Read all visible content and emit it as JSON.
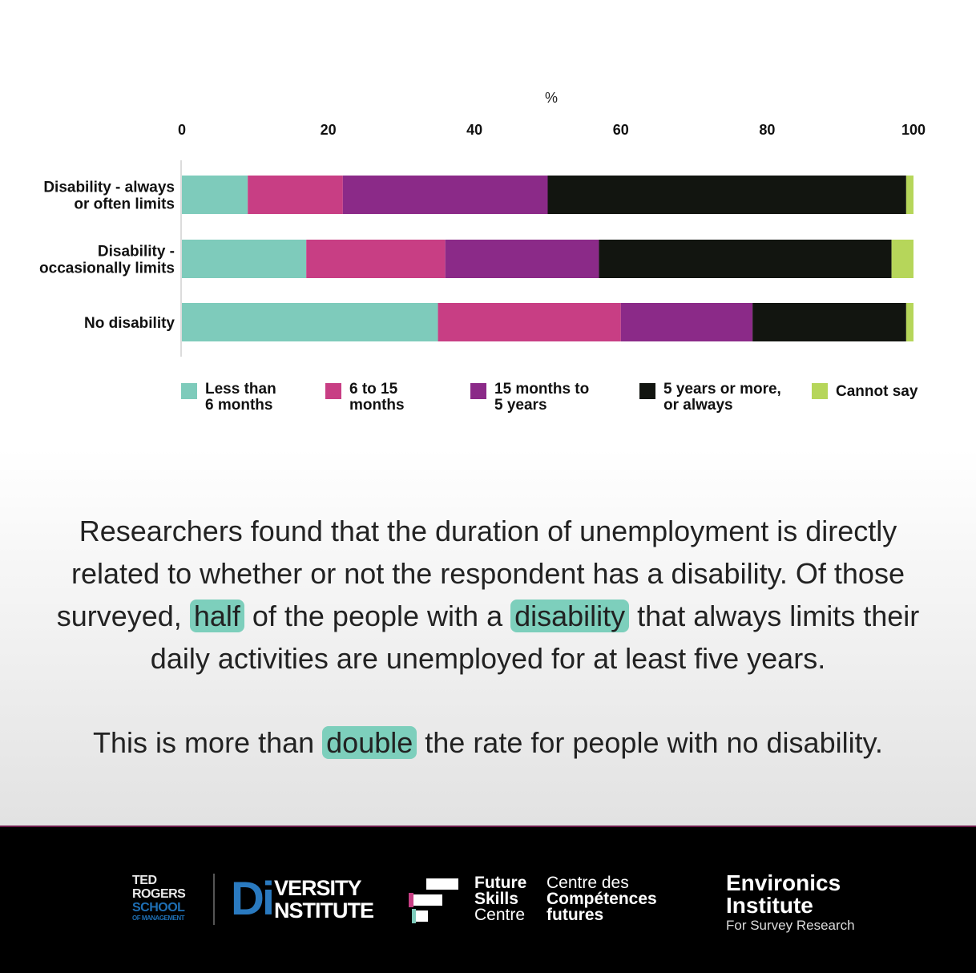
{
  "chart_data": {
    "type": "bar",
    "orientation": "horizontal",
    "stacked": true,
    "unit_label": "%",
    "xlim": [
      0,
      100
    ],
    "x_ticks": [
      "0",
      "20",
      "40",
      "60",
      "80",
      "100"
    ],
    "categories": [
      "Disability - always or often limits",
      "Disability - occasionally limits",
      "No disability"
    ],
    "category_lines": [
      [
        "Disability - always",
        "or often limits"
      ],
      [
        "Disability -",
        "occasionally limits"
      ],
      [
        "No disability"
      ]
    ],
    "series": [
      {
        "name": "Less than 6 months",
        "name_lines": [
          "Less than",
          "6 months"
        ],
        "color": "#7ecbbb",
        "values": [
          9,
          17,
          35
        ]
      },
      {
        "name": "6 to 15 months",
        "name_lines": [
          "6 to 15",
          "months"
        ],
        "color": "#c83e84",
        "values": [
          13,
          19,
          25
        ]
      },
      {
        "name": "15 months to 5 years",
        "name_lines": [
          "15 months to",
          "5 years"
        ],
        "color": "#8b2a88",
        "values": [
          28,
          21,
          18
        ]
      },
      {
        "name": "5 years or more, or always",
        "name_lines": [
          "5 years or more,",
          "or always"
        ],
        "color": "#121510",
        "values": [
          49,
          40,
          21
        ]
      },
      {
        "name": "Cannot say",
        "name_lines": [
          "Cannot say"
        ],
        "color": "#b6d65a",
        "values": [
          1,
          3,
          1
        ]
      }
    ],
    "grid": false,
    "legend_position": "bottom"
  },
  "caption": {
    "p1_a": "Researchers found that the duration of unemployment is directly related to whether or not the respondent has a disability. Of those surveyed, ",
    "p1_h1": "half",
    "p1_b": " of the people with a ",
    "p1_h2": "disability",
    "p1_c": " that always limits their daily activities are unemployed for at least five years.",
    "p2_a": "This is more than ",
    "p2_h1": "double",
    "p2_b": " the rate for people with no disability."
  },
  "footer": {
    "tr_line1": "TED",
    "tr_line2": "ROGERS",
    "tr_line3": "SCHOOL",
    "tr_line4": "OF MANAGEMENT",
    "di_mark": "Di",
    "di_line1": "VERSITY",
    "di_line2": "NSTITUTE",
    "fsc_en_1": "Future",
    "fsc_en_2": "Skills",
    "fsc_en_3": "Centre",
    "fsc_fr_1": "Centre des",
    "fsc_fr_2": "Compétences",
    "fsc_fr_3": "futures",
    "env_name": "Environics",
    "env_line2": "Institute",
    "env_sub": "For Survey Research"
  }
}
